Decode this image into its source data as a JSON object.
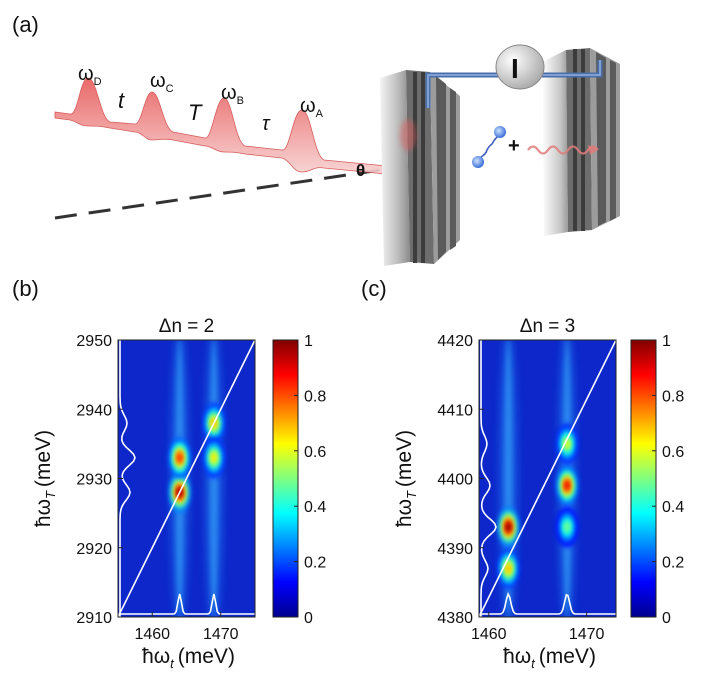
{
  "panels": {
    "a": {
      "label": "(a)",
      "pulses": [
        {
          "name": "ω",
          "sub": "D"
        },
        {
          "name": "ω",
          "sub": "C"
        },
        {
          "name": "ω",
          "sub": "B"
        },
        {
          "name": "ω",
          "sub": "A"
        }
      ],
      "delays": [
        "t",
        "T",
        "τ"
      ],
      "angle_symbol": "θ",
      "current_symbol": "I",
      "plus_symbol": "+"
    },
    "b": {
      "label": "(b)"
    },
    "c": {
      "label": "(c)"
    }
  },
  "chart_data": [
    {
      "type": "heatmap",
      "title": "Δn = 2",
      "xlabel": "ħω",
      "xlabel_sub": "t",
      "xlabel_unit": "(meV)",
      "ylabel": "ħω",
      "ylabel_sub": "T",
      "ylabel_unit": "(meV)",
      "xlim": [
        1455,
        1475
      ],
      "ylim": [
        2910,
        2950
      ],
      "xticks": [
        1460,
        1470
      ],
      "yticks": [
        2910,
        2920,
        2930,
        2940,
        2950
      ],
      "colorbar": {
        "range": [
          0,
          1
        ],
        "ticks": [
          "0",
          "0.2",
          "0.4",
          "0.6",
          "0.8",
          "1"
        ]
      },
      "peaks": [
        {
          "x": 1464,
          "y": 2928,
          "amp": 1.0
        },
        {
          "x": 1464,
          "y": 2933,
          "amp": 0.85
        },
        {
          "x": 1469,
          "y": 2938,
          "amp": 0.7
        },
        {
          "x": 1469,
          "y": 2933,
          "amp": 0.65
        }
      ],
      "diagonal": true
    },
    {
      "type": "heatmap",
      "title": "Δn = 3",
      "xlabel": "ħω",
      "xlabel_sub": "t",
      "xlabel_unit": "(meV)",
      "ylabel": "ħω",
      "ylabel_sub": "T",
      "ylabel_unit": "(meV)",
      "xlim": [
        1459,
        1473
      ],
      "ylim": [
        4380,
        4420
      ],
      "xticks": [
        1460,
        1470
      ],
      "yticks": [
        4380,
        4390,
        4400,
        4410,
        4420
      ],
      "colorbar": {
        "range": [
          0,
          1
        ],
        "ticks": [
          "0",
          "0.2",
          "0.4",
          "0.6",
          "0.8",
          "1"
        ]
      },
      "peaks": [
        {
          "x": 1462,
          "y": 4393,
          "amp": 1.0
        },
        {
          "x": 1462,
          "y": 4387,
          "amp": 0.7
        },
        {
          "x": 1468,
          "y": 4399,
          "amp": 0.9
        },
        {
          "x": 1468,
          "y": 4405,
          "amp": 0.6
        },
        {
          "x": 1468,
          "y": 4393,
          "amp": 0.5
        }
      ],
      "diagonal": true
    }
  ]
}
